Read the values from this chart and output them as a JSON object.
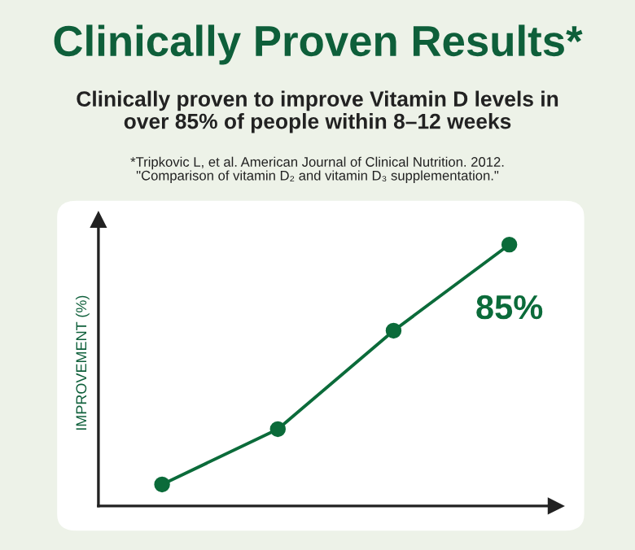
{
  "chart_data": {
    "type": "line",
    "title": "Clinically Proven Results*",
    "subtitle": "Clinically proven to improve Vitamin D levels in\nover 85% of people within 8–12 weeks",
    "annotations": [
      "*Tripkovic L, et al. American Journal of Clinical Nutrition. 2012.\n\"Comparison of vitamin D₂ and vitamin D₃ supplementation.\""
    ],
    "ylabel": "IMPROVEMENT (%)",
    "categories": [
      null,
      null,
      null,
      null
    ],
    "ylim": [
      0,
      93
    ],
    "series": [
      {
        "color": "#0b6b3a",
        "values": [
          7,
          25,
          57,
          85
        ],
        "value_labels": [
          null,
          null,
          null,
          "85%"
        ]
      }
    ],
    "marker": "circle",
    "line_style": "solid",
    "grid": false,
    "legend": false
  }
}
